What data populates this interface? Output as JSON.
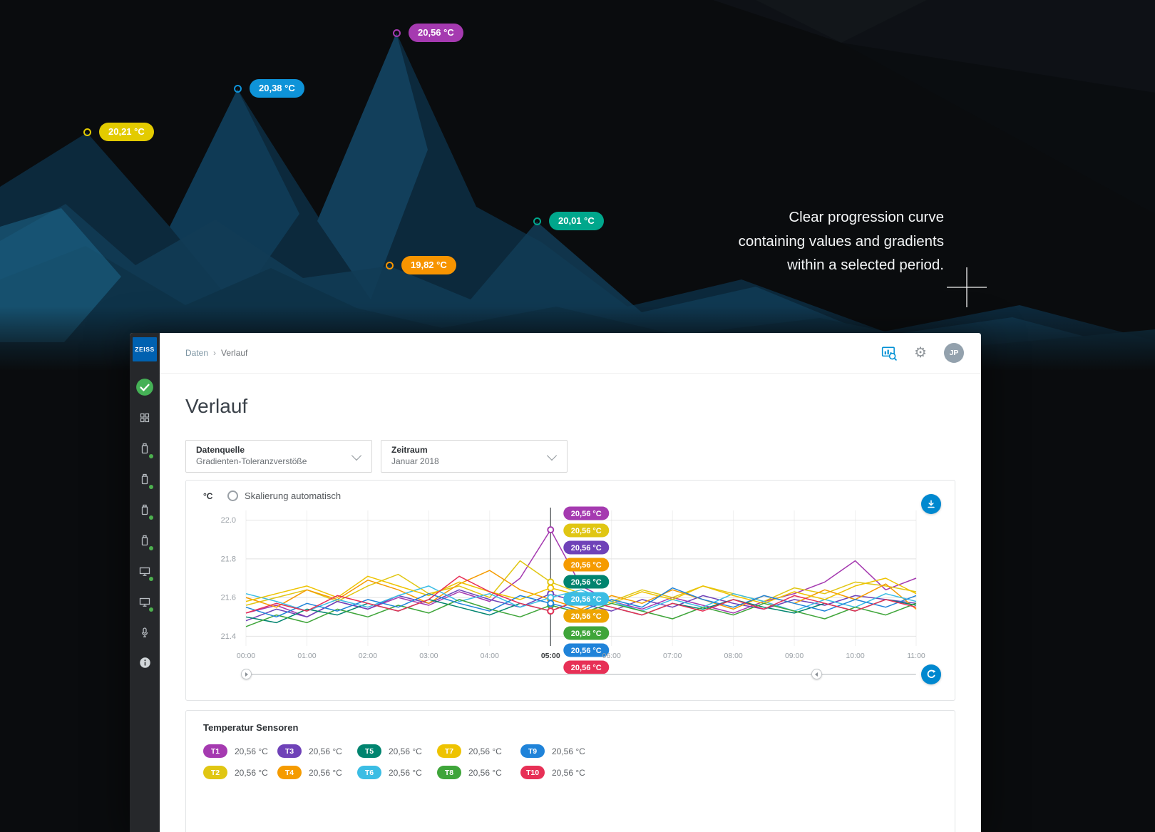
{
  "hero": {
    "caption_lines": [
      "Clear progression curve",
      "containing values and gradients",
      "within a selected period."
    ],
    "markers": [
      {
        "label": "20,21 °C",
        "color": "#e3cb00",
        "x": 122,
        "y": 185
      },
      {
        "label": "20,38 °C",
        "color": "#0e93d8",
        "x": 333,
        "y": 124
      },
      {
        "label": "20,56 °C",
        "color": "#a53ab0",
        "x": 556,
        "y": 46
      },
      {
        "label": "20,01 °C",
        "color": "#00a78c",
        "x": 753,
        "y": 310
      },
      {
        "label": "19,82 °C",
        "color": "#f79400",
        "x": 546,
        "y": 372
      }
    ]
  },
  "app": {
    "brand": "ZEISS",
    "topbar": {
      "breadcrumb": {
        "items": [
          "Daten",
          "Verlauf"
        ],
        "separator": "›"
      },
      "avatar": "JP",
      "icons": [
        "chart-search-icon",
        "settings-icon",
        "avatar"
      ]
    },
    "page_title": "Verlauf",
    "filters": [
      {
        "label": "Datenquelle",
        "value": "Gradienten-Toleranzverstöße"
      },
      {
        "label": "Zeitraum",
        "value": "Januar 2018"
      }
    ],
    "chart_panel": {
      "unit": "°C",
      "radio_label": "Skalierung automatisch"
    },
    "sensors_panel": {
      "title": "Temperatur Sensoren",
      "items": [
        {
          "id": "T1",
          "color": "#a53ab0",
          "value": "20,56 °C"
        },
        {
          "id": "T3",
          "color": "#6f42b8",
          "value": "20,56 °C"
        },
        {
          "id": "T5",
          "color": "#00846f",
          "value": "20,56 °C"
        },
        {
          "id": "T7",
          "color": "#eec300",
          "value": "20,56 °C"
        },
        {
          "id": "T9",
          "color": "#1f83d9",
          "value": "20,56 °C"
        },
        {
          "id": "T2",
          "color": "#e0c613",
          "value": "20,56 °C"
        },
        {
          "id": "T4",
          "color": "#f59b00",
          "value": "20,56 °C"
        },
        {
          "id": "T6",
          "color": "#3bbde4",
          "value": "20,56 °C"
        },
        {
          "id": "T8",
          "color": "#3fa53a",
          "value": "20,56 °C"
        },
        {
          "id": "T10",
          "color": "#e73056",
          "value": "20,56 °C"
        }
      ]
    }
  },
  "chart_data": {
    "type": "line",
    "unit": "°C",
    "x_labels": [
      "00:00",
      "01:00",
      "02:00",
      "03:00",
      "04:00",
      "05:00",
      "06:00",
      "07:00",
      "08:00",
      "09:00",
      "10:00",
      "11:00"
    ],
    "points_per_hour": 2,
    "ylim": [
      21.35,
      22.05
    ],
    "yticks": [
      "22.0",
      "21.8",
      "21.6",
      "21.4"
    ],
    "selected_x": "05:00",
    "grid": true,
    "series": [
      {
        "name": "T1",
        "color": "#a53ab0",
        "values": [
          21.52,
          21.56,
          21.5,
          21.58,
          21.54,
          21.6,
          21.56,
          21.63,
          21.58,
          21.7,
          21.95,
          21.66,
          21.58,
          21.54,
          21.6,
          21.56,
          21.52,
          21.58,
          21.62,
          21.68,
          21.79,
          21.64,
          21.7
        ]
      },
      {
        "name": "T2",
        "color": "#e0c613",
        "values": [
          21.56,
          21.6,
          21.64,
          21.58,
          21.66,
          21.72,
          21.62,
          21.66,
          21.6,
          21.79,
          21.68,
          21.62,
          21.58,
          21.64,
          21.6,
          21.66,
          21.62,
          21.58,
          21.65,
          21.62,
          21.68,
          21.66,
          21.63
        ]
      },
      {
        "name": "T3",
        "color": "#6f42b8",
        "values": [
          21.48,
          21.54,
          21.5,
          21.58,
          21.54,
          21.61,
          21.57,
          21.64,
          21.59,
          21.55,
          21.62,
          21.57,
          21.53,
          21.59,
          21.55,
          21.61,
          21.57,
          21.54,
          21.59,
          21.56,
          21.61,
          21.59,
          21.57
        ]
      },
      {
        "name": "T4",
        "color": "#f59b00",
        "values": [
          21.6,
          21.55,
          21.64,
          21.59,
          21.69,
          21.64,
          21.57,
          21.67,
          21.74,
          21.64,
          21.59,
          21.54,
          21.61,
          21.57,
          21.64,
          21.59,
          21.54,
          21.61,
          21.57,
          21.64,
          21.59,
          21.67,
          21.54
        ]
      },
      {
        "name": "T5",
        "color": "#00846f",
        "values": [
          21.5,
          21.47,
          21.54,
          21.51,
          21.57,
          21.53,
          21.59,
          21.55,
          21.51,
          21.57,
          21.53,
          21.59,
          21.55,
          21.51,
          21.57,
          21.54,
          21.59,
          21.55,
          21.52,
          21.57,
          21.53,
          21.59,
          21.56
        ]
      },
      {
        "name": "T6",
        "color": "#3bbde4",
        "values": [
          21.62,
          21.58,
          21.53,
          21.59,
          21.55,
          21.61,
          21.66,
          21.58,
          21.62,
          21.55,
          21.6,
          21.64,
          21.58,
          21.53,
          21.59,
          21.55,
          21.62,
          21.58,
          21.53,
          21.59,
          21.55,
          21.62,
          21.58
        ]
      },
      {
        "name": "T7",
        "color": "#eec300",
        "values": [
          21.58,
          21.62,
          21.66,
          21.6,
          21.71,
          21.66,
          21.61,
          21.68,
          21.63,
          21.59,
          21.65,
          21.61,
          21.57,
          21.63,
          21.59,
          21.66,
          21.61,
          21.57,
          21.63,
          21.59,
          21.66,
          21.7,
          21.62
        ]
      },
      {
        "name": "T8",
        "color": "#3fa53a",
        "values": [
          21.45,
          21.51,
          21.47,
          21.54,
          21.5,
          21.56,
          21.52,
          21.59,
          21.54,
          21.5,
          21.56,
          21.52,
          21.57,
          21.53,
          21.49,
          21.55,
          21.51,
          21.57,
          21.53,
          21.49,
          21.55,
          21.51,
          21.57
        ]
      },
      {
        "name": "T9",
        "color": "#1f83d9",
        "values": [
          21.55,
          21.5,
          21.57,
          21.53,
          21.59,
          21.55,
          21.62,
          21.57,
          21.53,
          21.61,
          21.57,
          21.53,
          21.59,
          21.55,
          21.65,
          21.59,
          21.55,
          21.61,
          21.57,
          21.53,
          21.59,
          21.55,
          21.61
        ]
      },
      {
        "name": "T10",
        "color": "#e73056",
        "values": [
          21.52,
          21.57,
          21.53,
          21.61,
          21.57,
          21.53,
          21.59,
          21.71,
          21.63,
          21.57,
          21.53,
          21.59,
          21.55,
          21.51,
          21.57,
          21.53,
          21.59,
          21.54,
          21.61,
          21.57,
          21.53,
          21.59,
          21.55
        ]
      }
    ],
    "cursor_badges": [
      {
        "series": "T1",
        "color": "#a53ab0",
        "label": "20,56 °C"
      },
      {
        "series": "T2",
        "color": "#e0c613",
        "label": "20,56 °C"
      },
      {
        "series": "T3",
        "color": "#6f42b8",
        "label": "20,56 °C"
      },
      {
        "series": "T4",
        "color": "#f59b00",
        "label": "20,56 °C"
      },
      {
        "series": "T5",
        "color": "#00846f",
        "label": "20,56 °C"
      },
      {
        "series": "T6",
        "color": "#3bbde4",
        "label": "20,56 °C"
      },
      {
        "series": "T7",
        "color": "#eea500",
        "label": "20,56 °C"
      },
      {
        "series": "T8",
        "color": "#3fa53a",
        "label": "20,56 °C"
      },
      {
        "series": "T9",
        "color": "#1f83d9",
        "label": "20,56 °C"
      },
      {
        "series": "T10",
        "color": "#e73056",
        "label": "20,56 °C"
      }
    ]
  }
}
